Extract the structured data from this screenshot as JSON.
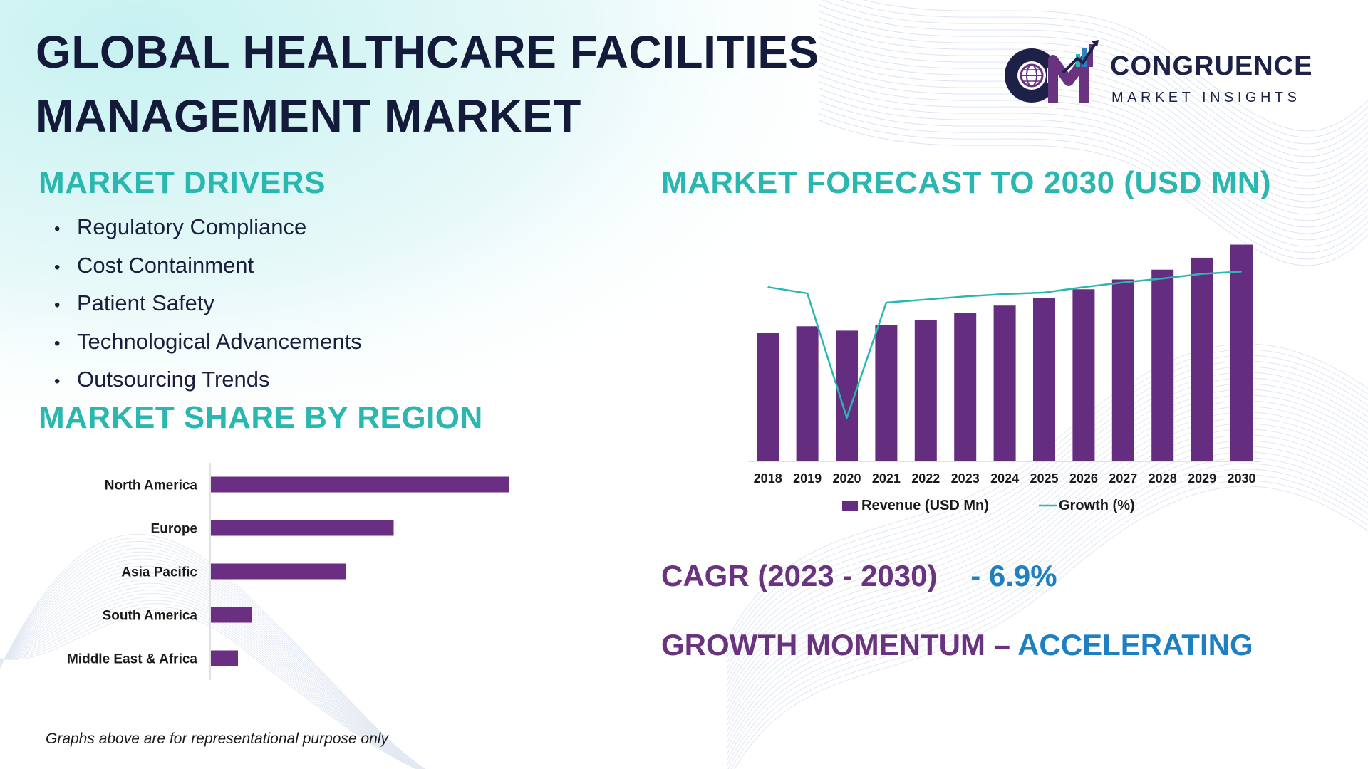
{
  "header": {
    "title_line1": "GLOBAL HEALTHCARE FACILITIES",
    "title_line2": "MANAGEMENT MARKET"
  },
  "logo": {
    "name": "CONGRUENCE",
    "tagline": "MARKET INSIGHTS",
    "icon": "cm-globe-chart-logo-icon",
    "colors": {
      "dark": "#1d2148",
      "purple": "#6a3380",
      "teal": "#2ab7b0"
    }
  },
  "drivers": {
    "heading": "MARKET DRIVERS",
    "bullet": "•",
    "items": [
      "Regulatory Compliance",
      "Cost Containment",
      "Patient Safety",
      "Technological Advancements",
      "Outsourcing Trends"
    ]
  },
  "forecast": {
    "heading": "MARKET FORECAST TO 2030 (USD MN)"
  },
  "region": {
    "heading": "MARKET SHARE BY REGION"
  },
  "chart_data": [
    {
      "type": "bar",
      "orientation": "horizontal",
      "categories": [
        "North America",
        "Europe",
        "Asia Pacific",
        "South America",
        "Middle East & Africa"
      ],
      "values": [
        44,
        27,
        20,
        6,
        4
      ],
      "xlim": [
        0,
        50
      ],
      "grid": false,
      "legend": "none",
      "colors": {
        "bar": "#6a2f82",
        "axis": "#d9d9d9",
        "label": "#1a1a1a"
      }
    },
    {
      "type": "bar",
      "categories": [
        "2018",
        "2019",
        "2020",
        "2021",
        "2022",
        "2023",
        "2024",
        "2025",
        "2026",
        "2027",
        "2028",
        "2029",
        "2030"
      ],
      "series": [
        {
          "name": "Revenue (USD Mn)",
          "type": "bar",
          "values": [
            59,
            62,
            60,
            62.5,
            65,
            68,
            71.5,
            75,
            79,
            83.5,
            88,
            93.5,
            99.5
          ]
        },
        {
          "name": "Growth (%)",
          "type": "line",
          "values": [
            5.2,
            4.8,
            -3.2,
            4.2,
            4.4,
            4.6,
            4.75,
            4.85,
            5.2,
            5.5,
            5.75,
            6.05,
            6.2
          ]
        }
      ],
      "ylim": [
        0,
        100
      ],
      "ylim_secondary": [
        -6,
        8
      ],
      "grid": false,
      "legend": "bottom",
      "colors": {
        "bar": "#652d80",
        "line": "#2bb7b1",
        "axis": "#d9d9d9",
        "label": "#1a1a1a"
      }
    }
  ],
  "stats": {
    "cagr_label": "CAGR (2023 - 2030)",
    "cagr_value": "- 6.9%",
    "momentum_label": "GROWTH MOMENTUM –",
    "momentum_value": "ACCELERATING"
  },
  "footnote": "Graphs above are for representational purpose only"
}
